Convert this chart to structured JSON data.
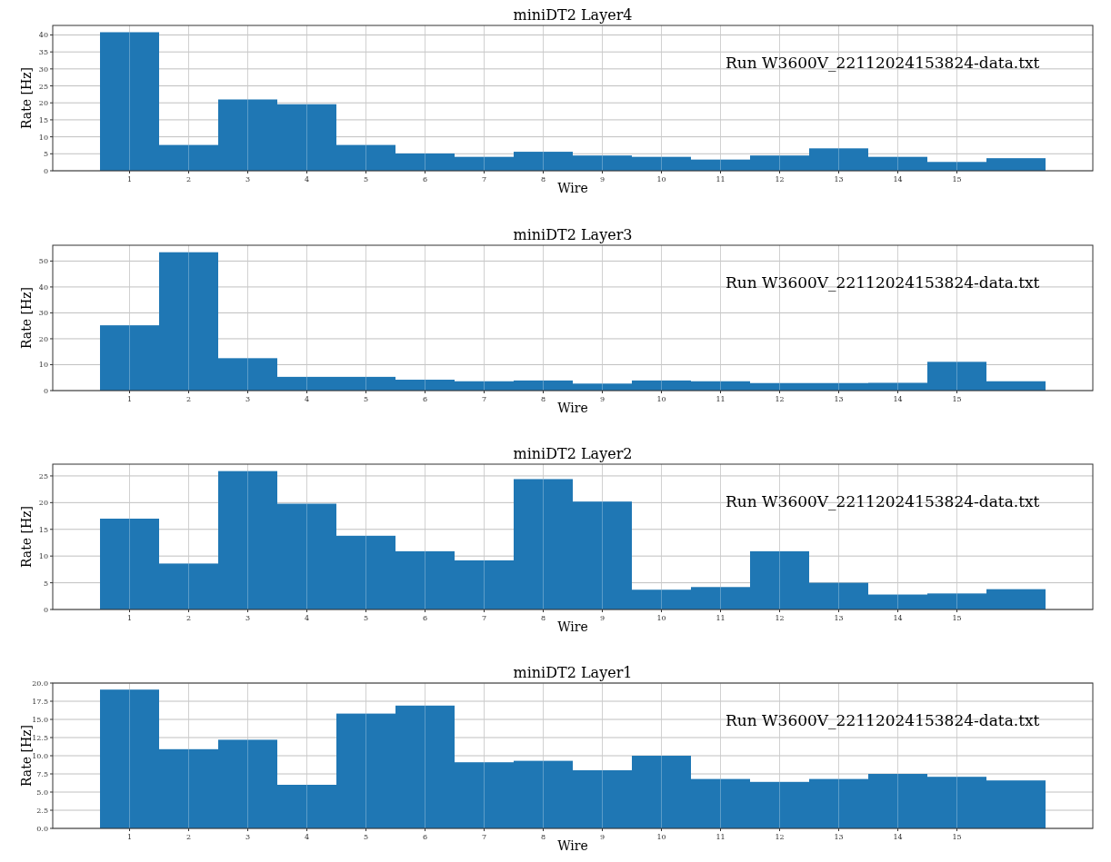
{
  "chart_data": [
    {
      "type": "histogram",
      "title": "miniDT2 Layer4",
      "xlabel": "Wire",
      "ylabel": "Rate [Hz]",
      "annotations": [
        "Run W3600V_22112024153824-data.txt"
      ],
      "color": "#1f77b4",
      "grid": true,
      "bins": [
        0.5,
        1.5,
        2.5,
        3.5,
        4.5,
        5.5,
        6.5,
        7.5,
        8.5,
        9.5,
        10.5,
        11.5,
        12.5,
        13.5,
        14.5,
        15.5,
        16.5
      ],
      "values": [
        40.8,
        7.6,
        21.0,
        19.6,
        7.6,
        5.1,
        4.1,
        5.6,
        4.5,
        4.1,
        3.3,
        4.5,
        6.6,
        4.1,
        2.6,
        3.7
      ],
      "xlim": [
        -0.3,
        17.3
      ],
      "xticks": [
        1,
        2,
        3,
        4,
        5,
        6,
        7,
        8,
        9,
        10,
        11,
        12,
        13,
        14,
        15
      ],
      "ylim": [
        0,
        42.8
      ],
      "yticks": [
        0,
        5,
        10,
        15,
        20,
        25,
        30,
        35,
        40
      ]
    },
    {
      "type": "histogram",
      "title": "miniDT2 Layer3",
      "xlabel": "Wire",
      "ylabel": "Rate [Hz]",
      "annotations": [
        "Run W3600V_22112024153824-data.txt"
      ],
      "color": "#1f77b4",
      "grid": true,
      "bins": [
        0.5,
        1.5,
        2.5,
        3.5,
        4.5,
        5.5,
        6.5,
        7.5,
        8.5,
        9.5,
        10.5,
        11.5,
        12.5,
        13.5,
        14.5,
        15.5,
        16.5
      ],
      "values": [
        25.2,
        53.4,
        12.5,
        5.3,
        5.3,
        4.2,
        3.6,
        3.9,
        2.7,
        3.9,
        3.6,
        2.9,
        2.9,
        3.0,
        11.1,
        3.6
      ],
      "xlim": [
        -0.3,
        17.3
      ],
      "xticks": [
        1,
        2,
        3,
        4,
        5,
        6,
        7,
        8,
        9,
        10,
        11,
        12,
        13,
        14,
        15
      ],
      "ylim": [
        0,
        56.1
      ],
      "yticks": [
        0,
        10,
        20,
        30,
        40,
        50
      ]
    },
    {
      "type": "histogram",
      "title": "miniDT2 Layer2",
      "xlabel": "Wire",
      "ylabel": "Rate [Hz]",
      "annotations": [
        "Run W3600V_22112024153824-data.txt"
      ],
      "color": "#1f77b4",
      "grid": true,
      "bins": [
        0.5,
        1.5,
        2.5,
        3.5,
        4.5,
        5.5,
        6.5,
        7.5,
        8.5,
        9.5,
        10.5,
        11.5,
        12.5,
        13.5,
        14.5,
        15.5,
        16.5
      ],
      "values": [
        17.0,
        8.6,
        25.9,
        19.8,
        13.8,
        10.9,
        9.2,
        24.4,
        20.2,
        3.7,
        4.2,
        10.9,
        5.0,
        2.8,
        3.0,
        3.8
      ],
      "xlim": [
        -0.3,
        17.3
      ],
      "xticks": [
        1,
        2,
        3,
        4,
        5,
        6,
        7,
        8,
        9,
        10,
        11,
        12,
        13,
        14,
        15
      ],
      "ylim": [
        0,
        27.2
      ],
      "yticks": [
        0,
        5,
        10,
        15,
        20,
        25
      ]
    },
    {
      "type": "histogram",
      "title": "miniDT2 Layer1",
      "xlabel": "Wire",
      "ylabel": "Rate [Hz]",
      "annotations": [
        "Run W3600V_22112024153824-data.txt"
      ],
      "color": "#1f77b4",
      "grid": true,
      "bins": [
        0.5,
        1.5,
        2.5,
        3.5,
        4.5,
        5.5,
        6.5,
        7.5,
        8.5,
        9.5,
        10.5,
        11.5,
        12.5,
        13.5,
        14.5,
        15.5,
        16.5
      ],
      "values": [
        19.1,
        10.9,
        12.2,
        6.0,
        15.8,
        16.9,
        9.1,
        9.3,
        8.0,
        10.0,
        6.8,
        6.4,
        6.8,
        7.5,
        7.1,
        6.6
      ],
      "xlim": [
        -0.3,
        17.3
      ],
      "xticks": [
        1,
        2,
        3,
        4,
        5,
        6,
        7,
        8,
        9,
        10,
        11,
        12,
        13,
        14,
        15
      ],
      "ylim": [
        0,
        20
      ],
      "yticks": [
        {
          "value": 0,
          "label": "0.0"
        },
        {
          "value": 2.5,
          "label": "2.5"
        },
        {
          "value": 5,
          "label": "5.0"
        },
        {
          "value": 7.5,
          "label": "7.5"
        },
        {
          "value": 10,
          "label": "10.0"
        },
        {
          "value": 12.5,
          "label": "12.5"
        },
        {
          "value": 15,
          "label": "15.0"
        },
        {
          "value": 17.5,
          "label": "17.5"
        },
        {
          "value": 20,
          "label": "20.0"
        }
      ]
    }
  ]
}
